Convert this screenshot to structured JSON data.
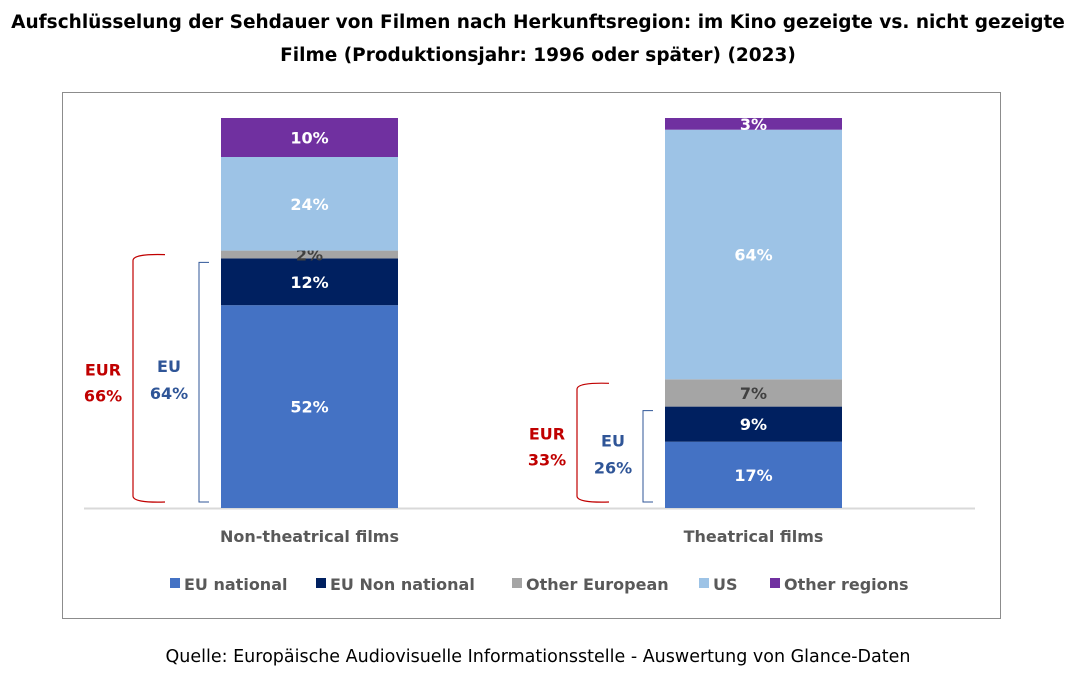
{
  "title_line1": "Aufschlüsselung der Sehdauer von Filmen nach Herkunftsregion: im Kino gezeigte vs. nicht gezeigte",
  "title_line2": "Filme (Produktionsjahr: 1996 oder später) (2023)",
  "source": "Quelle: Europäische Audiovisuelle Informationsstelle - Auswertung von Glance-Daten",
  "chart_data": {
    "type": "bar",
    "stacked": true,
    "title": "Aufschlüsselung der Sehdauer von Filmen nach Herkunftsregion: im Kino gezeigte vs. nicht gezeigte Filme (Produktionsjahr: 1996 oder später) (2023)",
    "categories": [
      "Non-theatrical films",
      "Theatrical films"
    ],
    "ylim": [
      0,
      100
    ],
    "unit": "%",
    "series": [
      {
        "name": "EU national",
        "color": "#4472c4",
        "label_color": "#ffffff",
        "values": [
          52,
          17
        ]
      },
      {
        "name": "EU Non national",
        "color": "#002060",
        "label_color": "#ffffff",
        "values": [
          12,
          9
        ]
      },
      {
        "name": "Other European",
        "color": "#a5a5a5",
        "label_color": "#404040",
        "values": [
          2,
          7
        ]
      },
      {
        "name": "US",
        "color": "#9dc3e6",
        "label_color": "#ffffff",
        "values": [
          24,
          64
        ]
      },
      {
        "name": "Other regions",
        "color": "#7030a0",
        "label_color": "#ffffff",
        "values": [
          10,
          3
        ]
      }
    ],
    "legend_position": "bottom",
    "annotations": [
      {
        "category": "Non-theatrical films",
        "eur_label": "EUR",
        "eur_value": "66%",
        "eu_label": "EU",
        "eu_value": "64%"
      },
      {
        "category": "Theatrical films",
        "eur_label": "EUR",
        "eur_value": "33%",
        "eu_label": "EU",
        "eu_value": "26%"
      }
    ],
    "annotation_colors": {
      "eur": "#c00000",
      "eu": "#2f5597"
    }
  }
}
